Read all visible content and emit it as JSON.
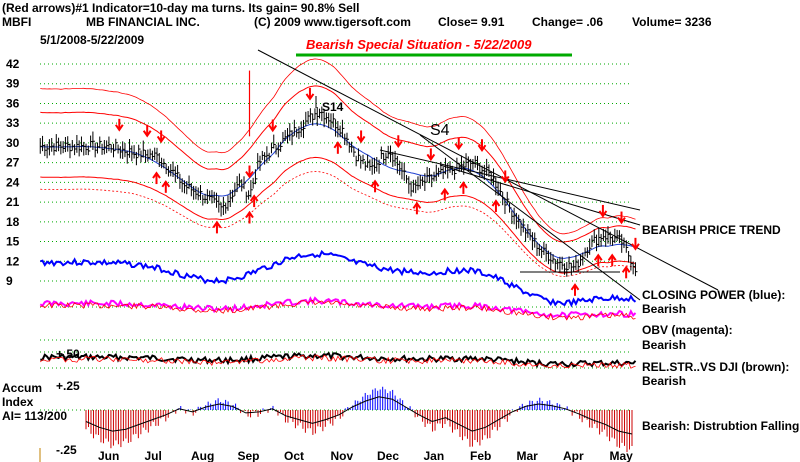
{
  "header": {
    "line1_left": "(Red arrows)#1 Indicator=10-day ma turns.  Its gain= 90.8% Sell",
    "symbol": "MBFI",
    "company": "MB FINANCIAL INC.",
    "copyright": "(C) 2009 www.tigersoft.com",
    "close": "Close=  9.91",
    "change": "Change= .06",
    "volume": "Volume= 3236",
    "date_range": "5/1/2008-5/22/2009",
    "title": "Bearish Special Situation - 5/22/2009"
  },
  "annotations": {
    "s14": "S14",
    "s4": "S4",
    "bearish_price_trend": "BEARISH PRICE TREND",
    "closing_power_line1": "CLOSING POWER (blue):",
    "closing_power_line2": "Bearish",
    "obv_line1": "OBV (magenta):",
    "obv_line2": "Bearish",
    "relstr_line1": "REL.STR..VS DJI (brown):",
    "relstr_line2": "Bearish",
    "accum_note": "Bearish:  Distrubtion Falling.",
    "rel_scale": "+.50",
    "accum_title1": "Accum",
    "accum_title2": "Index",
    "accum_ai": "AI= 113/200",
    "accum_top": "+.25",
    "accum_bottom": "-.25"
  },
  "colors": {
    "price_bars": "#000000",
    "bands": "#ff0000",
    "ma_blue": "#1f3fd0",
    "closing_power": "#0000ff",
    "obv": "#ff00ff",
    "relstr": "#000000",
    "accum_pos": "#0000ff",
    "accum_neg": "#cc0000",
    "arrows": "#ff0000",
    "grid": "#00aa00",
    "title_underline": "#00aa00"
  },
  "chart_data": {
    "type": "line",
    "x_ticks": [
      "Jun",
      "Jul",
      "Aug",
      "Sep",
      "Oct",
      "Nov",
      "Dec",
      "Jan",
      "Feb",
      "Mar",
      "Apr",
      "May"
    ],
    "y_ticks": [
      42,
      39,
      36,
      33,
      30,
      27,
      24,
      21,
      18,
      15,
      12,
      9
    ],
    "ylim": [
      9,
      42
    ],
    "price_series": {
      "name": "MBFI",
      "month_index": [
        0.0,
        0.5,
        1.0,
        1.3,
        1.6,
        2.0,
        2.4,
        2.8,
        3.0,
        3.2,
        3.5,
        4.0,
        4.5,
        5.0,
        5.3,
        5.6,
        6.0,
        6.5,
        7.0,
        7.4,
        7.8,
        8.2,
        8.6,
        9.0,
        9.3,
        9.6,
        10.0,
        10.3,
        10.6,
        11.0,
        11.3
      ],
      "close": [
        29.5,
        28.5,
        28.0,
        26.0,
        23.5,
        22.0,
        20.0,
        24.0,
        22.0,
        27.0,
        29.0,
        32.0,
        35.0,
        32.0,
        28.0,
        26.0,
        29.0,
        23.0,
        25.0,
        26.0,
        27.0,
        25.0,
        20.0,
        16.0,
        13.5,
        12.0,
        11.0,
        14.5,
        16.0,
        15.0,
        11.0
      ]
    },
    "arrows_down_month_index": [
      0.2,
      0.8,
      1.1,
      3.0,
      3.5,
      4.3,
      5.4,
      6.2,
      6.9,
      7.5,
      8.0,
      8.5,
      10.6,
      11.0,
      11.3
    ],
    "arrows_up_month_index": [
      1.0,
      1.2,
      2.3,
      3.0,
      3.1,
      4.9,
      5.7,
      6.6,
      7.2,
      7.6,
      8.3,
      10.0,
      10.5,
      10.8,
      11.1
    ],
    "series": [
      {
        "name": "CLOSING POWER",
        "color": "#0000ff"
      },
      {
        "name": "OBV",
        "color": "#ff00ff"
      },
      {
        "name": "REL.STR..VS DJI",
        "color": "#000000"
      }
    ],
    "accum_index": {
      "ylim": [
        -0.25,
        0.25
      ],
      "values": [
        -0.12,
        -0.18,
        -0.22,
        -0.2,
        -0.15,
        -0.1,
        -0.05,
        0.02,
        -0.02,
        0.05,
        0.1,
        0.06,
        -0.03,
        -0.02,
        0.02,
        -0.06,
        -0.1,
        -0.14,
        -0.1,
        -0.05,
        0.05,
        0.15,
        0.22,
        0.18,
        0.05,
        -0.05,
        -0.12,
        -0.08,
        -0.15,
        -0.22,
        -0.18,
        -0.1,
        -0.02,
        0.06,
        0.1,
        0.07,
        0.02,
        -0.04,
        -0.1,
        -0.15,
        -0.22,
        -0.25
      ]
    }
  }
}
